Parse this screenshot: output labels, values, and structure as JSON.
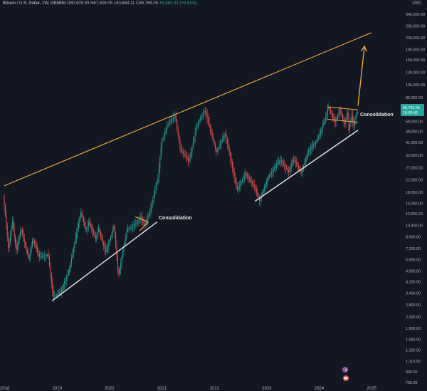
{
  "header": {
    "symbol": "Bitcoin / U.S. Dollar, 1W, GEMINI",
    "open": "O60,809.93",
    "high": "H67,608.05",
    "low": "L60,684.11",
    "close": "C66,765.05",
    "change": "+5,963.32 (+9.81%)"
  },
  "currency": "USD",
  "price_tag": {
    "value": "66,765.05",
    "countdown": "16:00:42"
  },
  "colors": {
    "background": "#131722",
    "up": "#26a69a",
    "down": "#ef5350",
    "trend_upper": "#f5b041",
    "support": "#e8e8e8",
    "arrow": "#f5b041"
  },
  "chart_data": {
    "type": "candlestick",
    "timeframe": "1W",
    "y_scale": "log",
    "ylim": [
      700,
      400000
    ],
    "x_ticks": [
      "2018",
      "2019",
      "2020",
      "2021",
      "2022",
      "2023",
      "2024",
      "2025"
    ],
    "y_ticks": [
      "340,000.00",
      "280,000.00",
      "230,000.00",
      "190,000.00",
      "160,000.00",
      "130,000.00",
      "106,000.00",
      "86,000.00",
      "71,000.00",
      "58,000.00",
      "49,000.00",
      "41,000.00",
      "33,000.00",
      "27,000.00",
      "22,000.00",
      "18,000.00",
      "15,000.00",
      "12,600.00",
      "10,400.00",
      "8,600.00",
      "7,100.00",
      "5,900.00",
      "4,900.00",
      "4,100.00",
      "3,400.00",
      "2,800.00",
      "2,300.00",
      "1,900.00",
      "1,580.00",
      "1,330.00",
      "1,110.00",
      "930.00",
      "780.00"
    ],
    "price_path": [
      [
        "2018-01-01",
        17000
      ],
      [
        "2018-01-20",
        11000
      ],
      [
        "2018-02-06",
        7000
      ],
      [
        "2018-03-05",
        11200
      ],
      [
        "2018-04-01",
        6900
      ],
      [
        "2018-05-05",
        9800
      ],
      [
        "2018-06-28",
        5900
      ],
      [
        "2018-07-25",
        8300
      ],
      [
        "2018-09-10",
        6200
      ],
      [
        "2018-11-10",
        6400
      ],
      [
        "2018-12-15",
        3200
      ],
      [
        "2019-02-01",
        3400
      ],
      [
        "2019-04-05",
        5000
      ],
      [
        "2019-06-26",
        13000
      ],
      [
        "2019-08-01",
        9500
      ],
      [
        "2019-08-20",
        11000
      ],
      [
        "2019-10-10",
        8200
      ],
      [
        "2019-10-26",
        10000
      ],
      [
        "2019-12-18",
        6600
      ],
      [
        "2020-02-12",
        10400
      ],
      [
        "2020-03-13",
        4500
      ],
      [
        "2020-05-10",
        9500
      ],
      [
        "2020-07-25",
        11000
      ],
      [
        "2020-08-17",
        12000
      ],
      [
        "2020-09-10",
        10300
      ],
      [
        "2020-10-20",
        13000
      ],
      [
        "2020-12-15",
        23000
      ],
      [
        "2021-01-08",
        41000
      ],
      [
        "2021-02-20",
        55000
      ],
      [
        "2021-04-14",
        64000
      ],
      [
        "2021-05-19",
        36000
      ],
      [
        "2021-07-20",
        30000
      ],
      [
        "2021-09-06",
        52000
      ],
      [
        "2021-10-20",
        66000
      ],
      [
        "2021-11-10",
        68500
      ],
      [
        "2022-01-24",
        35000
      ],
      [
        "2022-03-28",
        47000
      ],
      [
        "2022-05-12",
        28500
      ],
      [
        "2022-06-18",
        18500
      ],
      [
        "2022-08-15",
        24500
      ],
      [
        "2022-10-20",
        19500
      ],
      [
        "2022-11-21",
        15500
      ],
      [
        "2023-01-20",
        23000
      ],
      [
        "2023-04-14",
        30500
      ],
      [
        "2023-06-15",
        25000
      ],
      [
        "2023-07-15",
        31000
      ],
      [
        "2023-09-11",
        25000
      ],
      [
        "2023-10-25",
        35000
      ],
      [
        "2023-12-31",
        43000
      ],
      [
        "2024-02-28",
        62000
      ],
      [
        "2024-03-14",
        73500
      ],
      [
        "2024-05-01",
        57000
      ],
      [
        "2024-06-05",
        71000
      ],
      [
        "2024-07-05",
        54000
      ],
      [
        "2024-07-28",
        69000
      ],
      [
        "2024-08-05",
        50000
      ],
      [
        "2024-08-26",
        64000
      ],
      [
        "2024-09-06",
        53000
      ],
      [
        "2024-09-30",
        66765
      ]
    ],
    "annotations": [
      "Consolidation",
      "Consolidation"
    ],
    "trendlines": [
      {
        "role": "resistance",
        "from": [
          "2018-01-01",
          20000
        ],
        "to": [
          "2025-01-01",
          250000
        ]
      },
      {
        "role": "support",
        "from": [
          "2018-12-01",
          3000
        ],
        "to": [
          "2020-12-01",
          11000
        ]
      },
      {
        "role": "support",
        "from": [
          "2022-10-15",
          15500
        ],
        "to": [
          "2024-10-01",
          50000
        ]
      },
      {
        "role": "consolidation-upper",
        "from": [
          "2020-07-01",
          12000
        ],
        "to": [
          "2020-10-01",
          11000
        ]
      },
      {
        "role": "consolidation-lower",
        "from": [
          "2020-08-01",
          9500
        ],
        "to": [
          "2020-10-01",
          11000
        ]
      },
      {
        "role": "consolidation-upper",
        "from": [
          "2024-03-01",
          73500
        ],
        "to": [
          "2024-10-01",
          70000
        ]
      },
      {
        "role": "consolidation-lower",
        "from": [
          "2024-03-01",
          60000
        ],
        "to": [
          "2024-10-01",
          57000
        ]
      }
    ],
    "projection": {
      "from": [
        "2024-10-01",
        75000
      ],
      "to": [
        "2024-11-15",
        200000
      ]
    },
    "legend": "none",
    "grid": false
  }
}
